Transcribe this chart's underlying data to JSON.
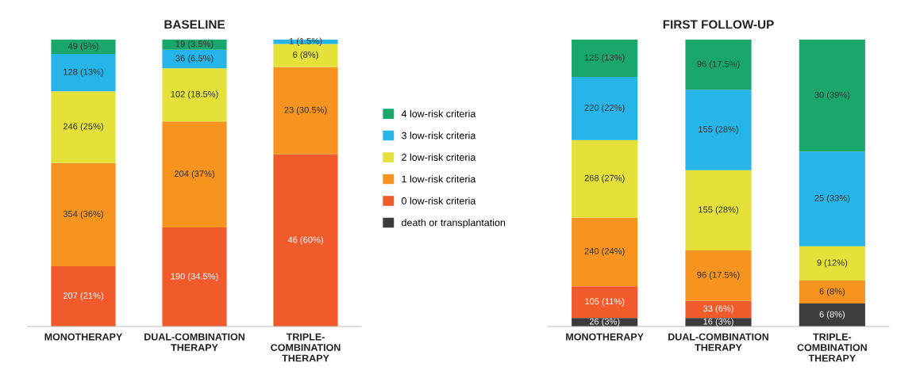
{
  "chart_data": [
    {
      "type": "bar",
      "title": "BASELINE",
      "stacked": true,
      "legend": "right",
      "categories": [
        "MONOTHERAPY",
        "DUAL-COMBINATION\nTHERAPY",
        "TRIPLE-\nCOMBINATION\nTHERAPY"
      ],
      "series": [
        {
          "name": "death or transplantation",
          "color": "#3c3c3c",
          "values": [
            null,
            null,
            null
          ],
          "value_labels": [
            null,
            null,
            null
          ]
        },
        {
          "name": "0 low-risk criteria",
          "color": "#f15a2b",
          "values": [
            21,
            34.5,
            60
          ],
          "value_labels": [
            "207 (21%)",
            "190 (34.5%)",
            "46 (60%)"
          ]
        },
        {
          "name": "1 low-risk criteria",
          "color": "#f7941f",
          "values": [
            36,
            37,
            30.5
          ],
          "value_labels": [
            "354 (36%)",
            "204 (37%)",
            "23 (30.5%)"
          ]
        },
        {
          "name": "2 low-risk criteria",
          "color": "#e5e13b",
          "values": [
            25,
            18.5,
            8
          ],
          "value_labels": [
            "246 (25%)",
            "102 (18.5%)",
            "6 (8%)"
          ]
        },
        {
          "name": "3 low-risk criteria",
          "color": "#27b5e9",
          "values": [
            13,
            6.5,
            1.5
          ],
          "value_labels": [
            "128 (13%)",
            "36 (6.5%)",
            "1 (1.5%)"
          ]
        },
        {
          "name": "4 low-risk criteria",
          "color": "#19a76e",
          "values": [
            5,
            3.5,
            null
          ],
          "value_labels": [
            "49 (5%)",
            "19 (3.5%)",
            null
          ]
        }
      ]
    },
    {
      "type": "bar",
      "title": "FIRST FOLLOW-UP",
      "stacked": true,
      "categories": [
        "MONOTHERAPY",
        "DUAL-COMBINATION\nTHERAPY",
        "TRIPLE-\nCOMBINATION\nTHERAPY"
      ],
      "series": [
        {
          "color": "#3c3c3c",
          "values": [
            3,
            3,
            8
          ],
          "value_labels": [
            "26 (3%)",
            "16 (3%)",
            "6 (8%)"
          ]
        },
        {
          "color": "#f15a2b",
          "values": [
            11,
            6,
            null
          ],
          "value_labels": [
            "105 (11%)",
            "33 (6%)",
            null
          ]
        },
        {
          "color": "#f7941f",
          "values": [
            24,
            17.5,
            8
          ],
          "value_labels": [
            "240 (24%)",
            "96 (17.5%)",
            "6 (8%)"
          ]
        },
        {
          "color": "#e5e13b",
          "values": [
            27,
            28,
            12
          ],
          "value_labels": [
            "268 (27%)",
            "155 (28%)",
            "9 (12%)"
          ]
        },
        {
          "color": "#27b5e9",
          "values": [
            22,
            28,
            33
          ],
          "value_labels": [
            "220 (22%)",
            "155 (28%)",
            "25 (33%)"
          ]
        },
        {
          "color": "#19a76e",
          "values": [
            13,
            17.5,
            39
          ],
          "value_labels": [
            "125 (13%)",
            "96 (17.5%)",
            "30 (39%)"
          ]
        }
      ]
    }
  ]
}
